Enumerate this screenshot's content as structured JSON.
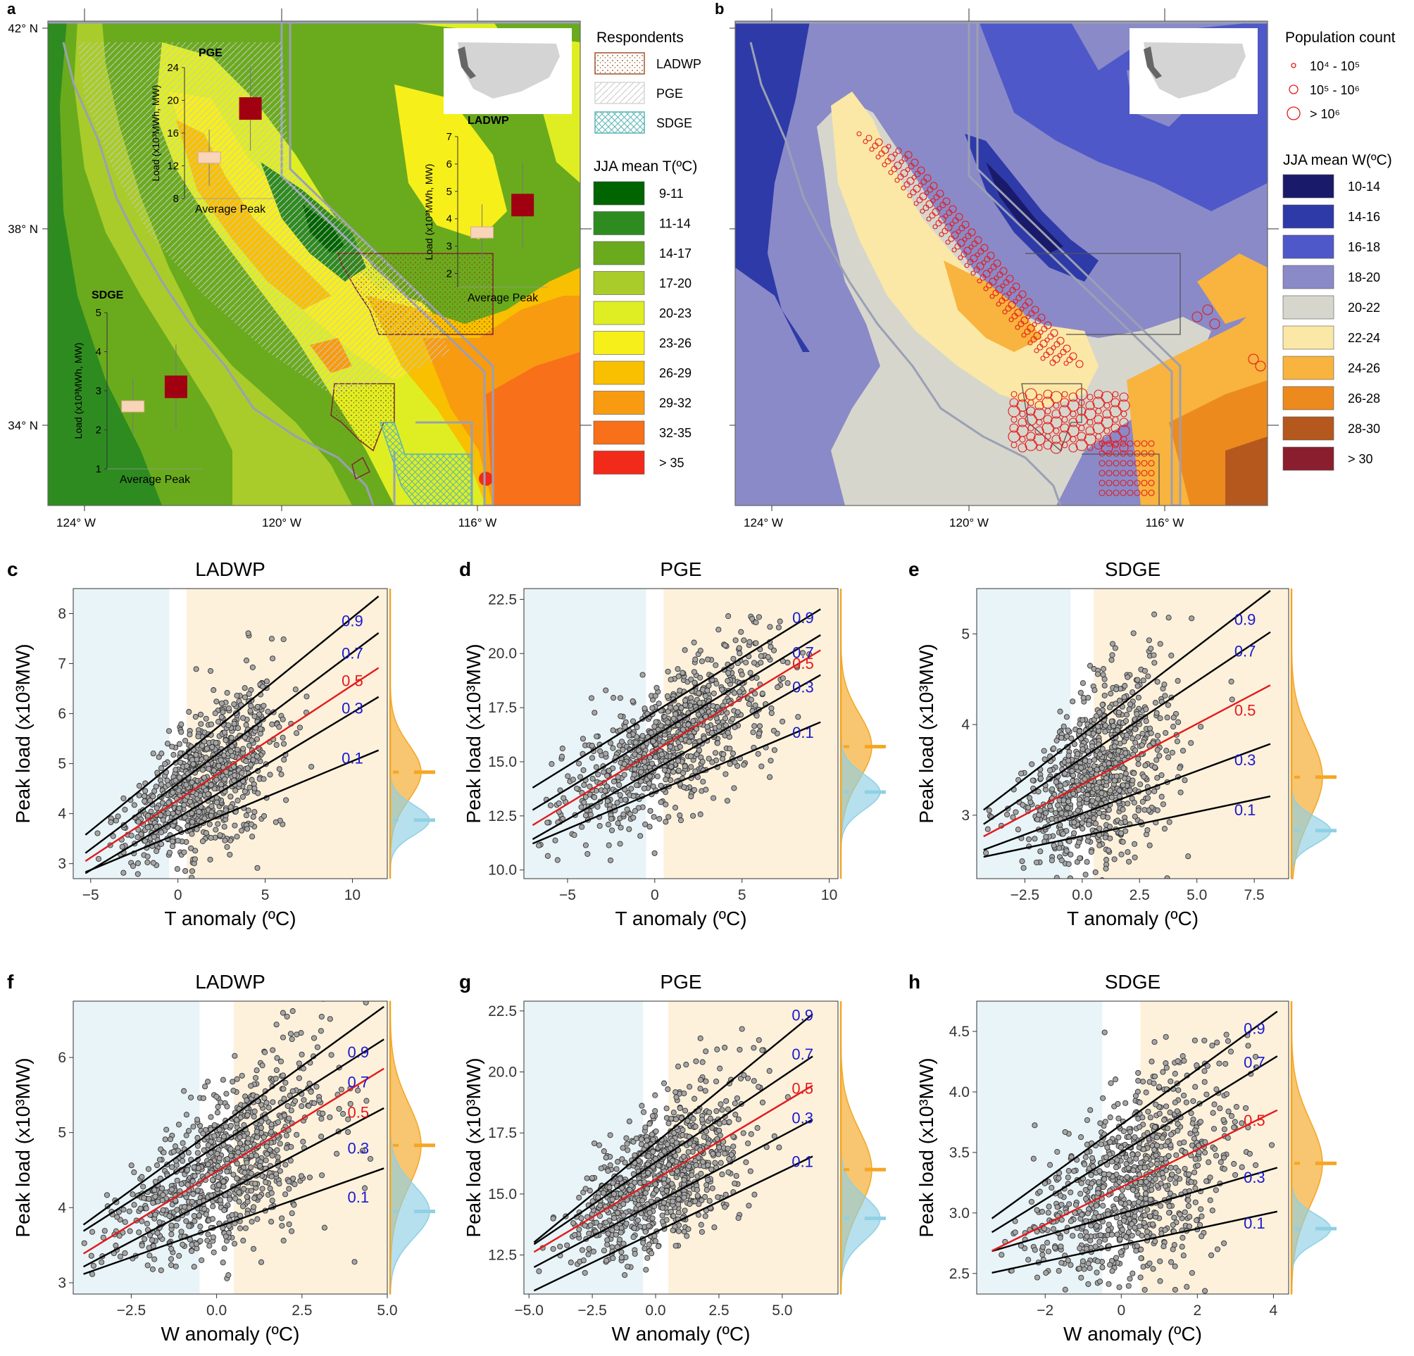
{
  "colors": {
    "t_bins": [
      "#006400",
      "#2e8b20",
      "#6aab1e",
      "#a9cc2a",
      "#dfee22",
      "#f7ef1a",
      "#f8c000",
      "#f89b10",
      "#f8701a",
      "#f22a1a"
    ],
    "w_bins": [
      "#1a1a6a",
      "#2e3aa8",
      "#4e58c8",
      "#8a8ac8",
      "#d6d6cc",
      "#fbe8a6",
      "#f8b43e",
      "#ec8a1e",
      "#b4581e",
      "#8a1e2e"
    ],
    "cold_bg": "#e8f4f8",
    "warm_bg": "#fdf1dc",
    "point_fill": "#a6a6a6",
    "median_line": "#e41a1c",
    "quantile_line": "#000000",
    "quantile_label": "#1a1acc",
    "warm_density": "#f5a623",
    "cold_density": "#8fd0e4",
    "box_average": "#f8d5b8",
    "box_peak": "#a00010"
  },
  "map_a": {
    "panel_label": "a",
    "lat_labels": [
      "42° N",
      "38° N",
      "34° N"
    ],
    "lon_labels": [
      "124° W",
      "120° W",
      "116° W"
    ],
    "legend_title": "Respondents",
    "respondents": [
      "LADWP",
      "PGE",
      "SDGE"
    ],
    "temp_legend_title": "JJA mean T(ºC)",
    "temp_bins": [
      "9-11",
      "11-14",
      "14-17",
      "17-20",
      "20-23",
      "23-26",
      "26-29",
      "29-32",
      "32-35",
      "> 35"
    ],
    "insets": [
      {
        "name": "PGE",
        "ylabel": "Load (x10³MWh, MW)",
        "yticks": [
          "8",
          "12",
          "16",
          "20",
          "24"
        ],
        "ymin": 8,
        "ymax": 24,
        "xlabel": "Average  Peak",
        "average": 13,
        "peak": 19
      },
      {
        "name": "LADWP",
        "ylabel": "Load (x10³MWh, MW)",
        "yticks": [
          "2",
          "3",
          "4",
          "5",
          "6",
          "7"
        ],
        "ymin": 1.5,
        "ymax": 7,
        "xlabel": "Average  Peak",
        "average": 3.5,
        "peak": 4.5
      },
      {
        "name": "SDGE",
        "ylabel": "Load (x10³MWh, MW)",
        "yticks": [
          "1",
          "2",
          "3",
          "4",
          "5"
        ],
        "ymin": 1,
        "ymax": 5,
        "xlabel": "Average  Peak",
        "average": 2.6,
        "peak": 3.1
      }
    ]
  },
  "map_b": {
    "panel_label": "b",
    "lat_labels": [
      "42° N",
      "38° N",
      "34° N"
    ],
    "lon_labels": [
      "124° W",
      "120° W",
      "116° W"
    ],
    "pop_title": "Population count",
    "pop_items": [
      "10⁴ - 10⁵",
      "10⁵ - 10⁶",
      "> 10⁶"
    ],
    "w_legend_title": "JJA mean W(ºC)",
    "w_bins": [
      "10-14",
      "14-16",
      "16-18",
      "18-20",
      "20-22",
      "22-24",
      "24-26",
      "26-28",
      "28-30",
      "> 30"
    ]
  },
  "chart_data": [
    {
      "panel": "c",
      "type": "scatter",
      "title": "LADWP",
      "xlabel": "T anomaly (ºC)",
      "ylabel": "Peak load (x10³MW)",
      "xlim": [
        -6,
        12
      ],
      "ylim": [
        2.7,
        8.5
      ],
      "xticks": [
        -5,
        0,
        5,
        10
      ],
      "yticks": [
        3,
        4,
        5,
        6,
        7,
        8
      ],
      "cold_region": [
        -6,
        -0.5
      ],
      "warm_region": [
        0.5,
        12
      ],
      "n_points": 900,
      "x_range": [
        -5.3,
        11.5
      ],
      "x_mean": 1.5,
      "x_sd": 2.2,
      "quantiles": [
        {
          "tau": "0.1",
          "intercept": 3.6,
          "slope": 0.145,
          "label_x": 10,
          "label_y": 5.0
        },
        {
          "tau": "0.3",
          "intercept": 3.92,
          "slope": 0.21,
          "label_x": 10,
          "label_y": 6.0
        },
        {
          "tau": "0.5",
          "intercept": 4.27,
          "slope": 0.23,
          "label_x": 10,
          "label_y": 6.55
        },
        {
          "tau": "0.7",
          "intercept": 4.6,
          "slope": 0.262,
          "label_x": 10,
          "label_y": 7.1
        },
        {
          "tau": "0.9",
          "intercept": 5.08,
          "slope": 0.284,
          "label_x": 10,
          "label_y": 7.75
        }
      ],
      "cold_mean": 3.87,
      "warm_mean": 4.83,
      "cold_density_sd": 0.3,
      "warm_density_sd": 0.55
    },
    {
      "panel": "d",
      "type": "scatter",
      "title": "PGE",
      "xlabel": "T anomaly (ºC)",
      "ylabel": "Peak load (x10³MW)",
      "xlim": [
        -7.5,
        10.5
      ],
      "ylim": [
        9.6,
        23
      ],
      "xticks": [
        -5,
        0,
        5,
        10
      ],
      "yticks": [
        10.0,
        12.5,
        15.0,
        17.5,
        20.0,
        22.5
      ],
      "cold_region": [
        -7.5,
        -0.5
      ],
      "warm_region": [
        0.5,
        10.5
      ],
      "n_points": 900,
      "x_range": [
        -7,
        9.5
      ],
      "x_mean": 1,
      "x_sd": 3,
      "quantiles": [
        {
          "tau": "0.1",
          "intercept": 13.6,
          "slope": 0.34,
          "label_x": 8.5,
          "label_y": 16.1
        },
        {
          "tau": "0.3",
          "intercept": 14.64,
          "slope": 0.46,
          "label_x": 8.5,
          "label_y": 18.2
        },
        {
          "tau": "0.5",
          "intercept": 15.5,
          "slope": 0.49,
          "label_x": 8.5,
          "label_y": 19.3
        },
        {
          "tau": "0.7",
          "intercept": 16.2,
          "slope": 0.49,
          "label_x": 8.5,
          "label_y": 19.8
        },
        {
          "tau": "0.9",
          "intercept": 17.3,
          "slope": 0.5,
          "label_x": 8.5,
          "label_y": 21.4
        }
      ],
      "cold_mean": 13.6,
      "warm_mean": 15.7,
      "cold_density_sd": 0.8,
      "warm_density_sd": 1.5
    },
    {
      "panel": "e",
      "type": "scatter",
      "title": "SDGE",
      "xlabel": "T anomaly (ºC)",
      "ylabel": "Peak load (x10³MW)",
      "xlim": [
        -4.6,
        9
      ],
      "ylim": [
        2.3,
        5.5
      ],
      "xticks": [
        -2.5,
        0.0,
        2.5,
        5.0,
        7.5
      ],
      "yticks": [
        3,
        4,
        5
      ],
      "cold_region": [
        -4.6,
        -0.5
      ],
      "warm_region": [
        0.5,
        9
      ],
      "n_points": 900,
      "x_range": [
        -4.3,
        8.2
      ],
      "x_mean": 0.8,
      "x_sd": 1.6,
      "quantiles": [
        {
          "tau": "0.1",
          "intercept": 2.77,
          "slope": 0.0534,
          "label_x": 7.1,
          "label_y": 3.0
        },
        {
          "tau": "0.3",
          "intercept": 3.02,
          "slope": 0.0935,
          "label_x": 7.1,
          "label_y": 3.55
        },
        {
          "tau": "0.5",
          "intercept": 3.34,
          "slope": 0.1335,
          "label_x": 7.1,
          "label_y": 4.1
        },
        {
          "tau": "0.7",
          "intercept": 3.63,
          "slope": 0.1695,
          "label_x": 7.1,
          "label_y": 4.75
        },
        {
          "tau": "0.9",
          "intercept": 3.89,
          "slope": 0.1935,
          "label_x": 7.1,
          "label_y": 5.1
        }
      ],
      "cold_mean": 2.83,
      "warm_mean": 3.42,
      "cold_density_sd": 0.15,
      "warm_density_sd": 0.45
    },
    {
      "panel": "f",
      "type": "scatter",
      "title": "LADWP",
      "xlabel": "W anomaly (ºC)",
      "ylabel": "Peak load (x10³MW)",
      "xlim": [
        -4.2,
        5
      ],
      "ylim": [
        2.85,
        6.75
      ],
      "xticks": [
        -2.5,
        0.0,
        2.5,
        5.0
      ],
      "yticks": [
        3,
        4,
        5,
        6
      ],
      "cold_region": [
        -4.2,
        -0.5
      ],
      "warm_region": [
        0.5,
        5
      ],
      "n_points": 900,
      "x_range": [
        -3.9,
        4.9
      ],
      "x_mean": 0.2,
      "x_sd": 1.5,
      "quantiles": [
        {
          "tau": "0.1",
          "intercept": 3.74,
          "slope": 0.16,
          "label_x": 4.15,
          "label_y": 4.07
        },
        {
          "tau": "0.3",
          "intercept": 4.15,
          "slope": 0.24,
          "label_x": 4.15,
          "label_y": 4.72
        },
        {
          "tau": "0.5",
          "intercept": 4.48,
          "slope": 0.28,
          "label_x": 4.15,
          "label_y": 5.2
        },
        {
          "tau": "0.7",
          "intercept": 4.82,
          "slope": 0.29,
          "label_x": 4.15,
          "label_y": 5.6
        },
        {
          "tau": "0.9",
          "intercept": 5.06,
          "slope": 0.33,
          "label_x": 4.15,
          "label_y": 6.0
        }
      ],
      "cold_mean": 3.95,
      "warm_mean": 4.83,
      "cold_density_sd": 0.35,
      "warm_density_sd": 0.55
    },
    {
      "panel": "g",
      "type": "scatter",
      "title": "PGE",
      "xlabel": "W anomaly (ºC)",
      "ylabel": "Peak load (x10³MW)",
      "xlim": [
        -5.2,
        7.2
      ],
      "ylim": [
        10.9,
        22.9
      ],
      "xticks": [
        -5.0,
        -2.5,
        0.0,
        2.5,
        5.0
      ],
      "yticks": [
        12.5,
        15.0,
        17.5,
        20.0,
        22.5
      ],
      "cold_region": [
        -5.2,
        -0.5
      ],
      "warm_region": [
        0.5,
        7.2
      ],
      "n_points": 900,
      "x_range": [
        -4.8,
        6.2
      ],
      "x_mean": 0.2,
      "x_sd": 1.6,
      "quantiles": [
        {
          "tau": "0.1",
          "intercept": 13.44,
          "slope": 0.5,
          "label_x": 5.8,
          "label_y": 16.1
        },
        {
          "tau": "0.3",
          "intercept": 14.64,
          "slope": 0.55,
          "label_x": 5.8,
          "label_y": 17.9
        },
        {
          "tau": "0.5",
          "intercept": 15.6,
          "slope": 0.62,
          "label_x": 5.8,
          "label_y": 19.1
        },
        {
          "tau": "0.7",
          "intercept": 16.3,
          "slope": 0.7,
          "label_x": 5.8,
          "label_y": 20.5
        },
        {
          "tau": "0.9",
          "intercept": 17.1,
          "slope": 0.85,
          "label_x": 5.8,
          "label_y": 22.1
        }
      ],
      "cold_mean": 14.0,
      "warm_mean": 16.0,
      "cold_density_sd": 0.9,
      "warm_density_sd": 1.6
    },
    {
      "panel": "h",
      "type": "scatter",
      "title": "SDGE",
      "xlabel": "W anomaly (ºC)",
      "ylabel": "Peak load (x10³MW)",
      "xlim": [
        -3.8,
        4.4
      ],
      "ylim": [
        2.33,
        4.75
      ],
      "xticks": [
        -2,
        0,
        2,
        4
      ],
      "yticks": [
        2.5,
        3.0,
        3.5,
        4.0,
        4.5
      ],
      "cold_region": [
        -3.8,
        -0.5
      ],
      "warm_region": [
        0.5,
        4.4
      ],
      "n_points": 900,
      "x_range": [
        -3.4,
        4.1
      ],
      "x_mean": 0.3,
      "x_sd": 1.3,
      "quantiles": [
        {
          "tau": "0.1",
          "intercept": 2.735,
          "slope": 0.0675,
          "label_x": 3.5,
          "label_y": 2.87
        },
        {
          "tau": "0.3",
          "intercept": 2.997,
          "slope": 0.092,
          "label_x": 3.5,
          "label_y": 3.25
        },
        {
          "tau": "0.5",
          "intercept": 3.214,
          "slope": 0.155,
          "label_x": 3.5,
          "label_y": 3.72
        },
        {
          "tau": "0.7",
          "intercept": 3.5,
          "slope": 0.194,
          "label_x": 3.5,
          "label_y": 4.2
        },
        {
          "tau": "0.9",
          "intercept": 3.73,
          "slope": 0.228,
          "label_x": 3.5,
          "label_y": 4.48
        }
      ],
      "cold_mean": 2.87,
      "warm_mean": 3.41,
      "cold_density_sd": 0.12,
      "warm_density_sd": 0.35
    }
  ]
}
